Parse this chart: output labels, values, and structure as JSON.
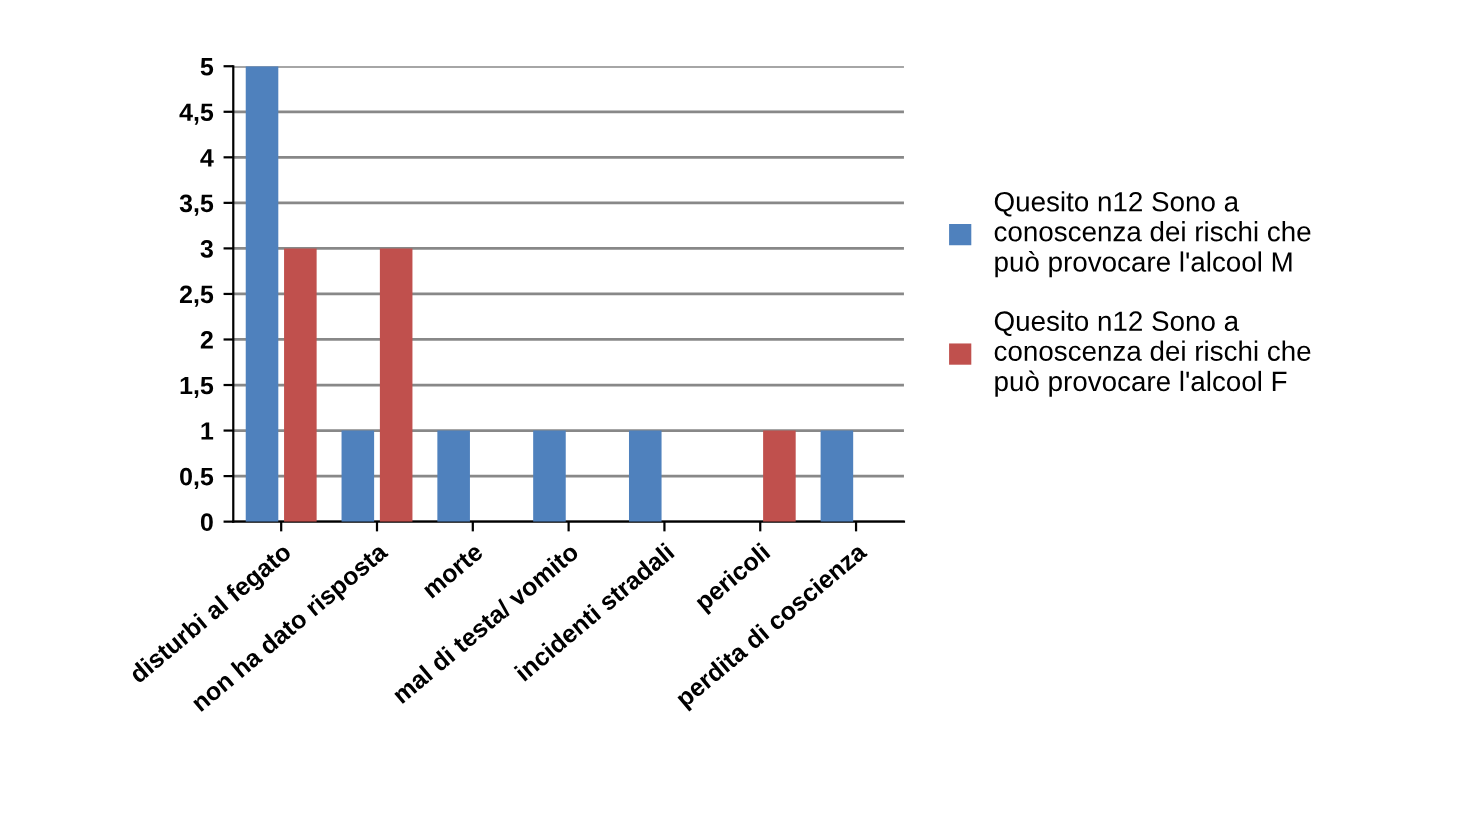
{
  "chart_data": {
    "type": "bar",
    "categories": [
      "disturbi al fegato",
      "non ha dato risposta",
      "morte",
      "mal di testa/ vomito",
      "incidenti stradali",
      "pericoli",
      "perdita di coscienza"
    ],
    "series": [
      {
        "name": "Quesito n12 Sono a\nconoscenza dei rischi che\npuò provocare l'alcool M",
        "color": "#4f81bd",
        "values": [
          5,
          1,
          1,
          1,
          1,
          0,
          1
        ]
      },
      {
        "name": "Quesito n12 Sono a\nconoscenza dei rischi che\npuò provocare l'alcool F",
        "color": "#c0504d",
        "values": [
          3,
          3,
          0,
          0,
          0,
          1,
          0
        ]
      }
    ],
    "ylim": [
      0,
      5
    ],
    "yticks": [
      0,
      {
        "value": 0.5,
        "label": "0,5"
      },
      1,
      {
        "value": 1.5,
        "label": "1,5"
      },
      2,
      {
        "value": 2.5,
        "label": "2,5"
      },
      3,
      {
        "value": 3.5,
        "label": "3,5"
      },
      4,
      {
        "value": 4.5,
        "label": "4,5"
      },
      5
    ],
    "grid": "y",
    "legend": "right"
  }
}
